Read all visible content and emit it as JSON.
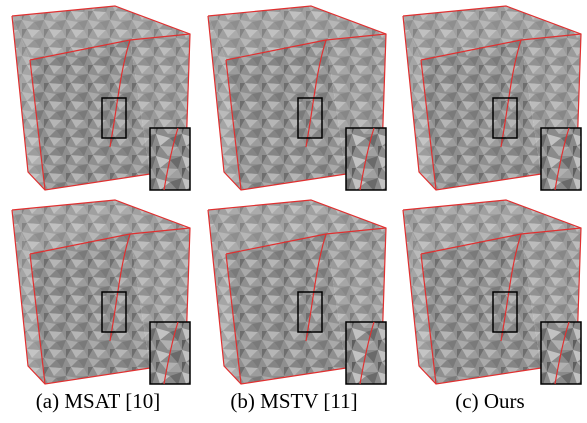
{
  "captions": [
    "(a) MSAT [10]",
    "(b) MSTV [11]",
    "(c) Ours"
  ]
}
